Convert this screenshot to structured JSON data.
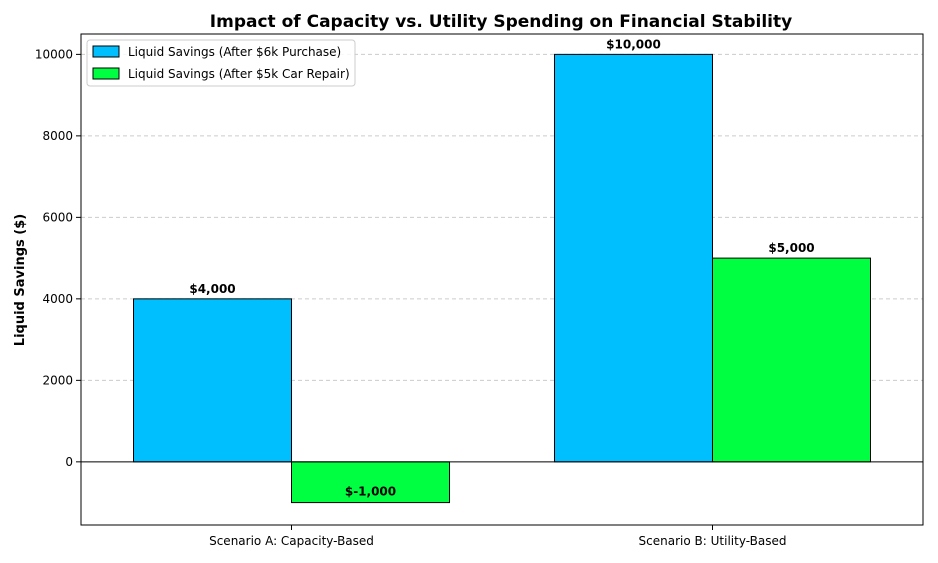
{
  "chart_data": {
    "type": "bar",
    "title": "Impact of Capacity vs. Utility Spending on Financial Stability",
    "xlabel": "",
    "ylabel": "Liquid Savings ($)",
    "categories": [
      "Scenario A: Capacity-Based",
      "Scenario B: Utility-Based"
    ],
    "series": [
      {
        "name": "Liquid Savings (After $6k Purchase)",
        "color": "#00bfff",
        "values": [
          4000,
          10000
        ],
        "labels": [
          "$4,000",
          "$10,000"
        ]
      },
      {
        "name": "Liquid Savings (After $5k Car Repair)",
        "color": "#00ff41",
        "values": [
          -1000,
          5000
        ],
        "labels": [
          "$-1,000",
          "$5,000"
        ]
      }
    ],
    "ylim": [
      -1550,
      10500
    ],
    "yticks": [
      0,
      2000,
      4000,
      6000,
      8000,
      10000
    ],
    "ytick_labels": [
      "0",
      "2000",
      "4000",
      "6000",
      "8000",
      "10000"
    ],
    "grid": "y-dashed",
    "legend_position": "top-left"
  }
}
